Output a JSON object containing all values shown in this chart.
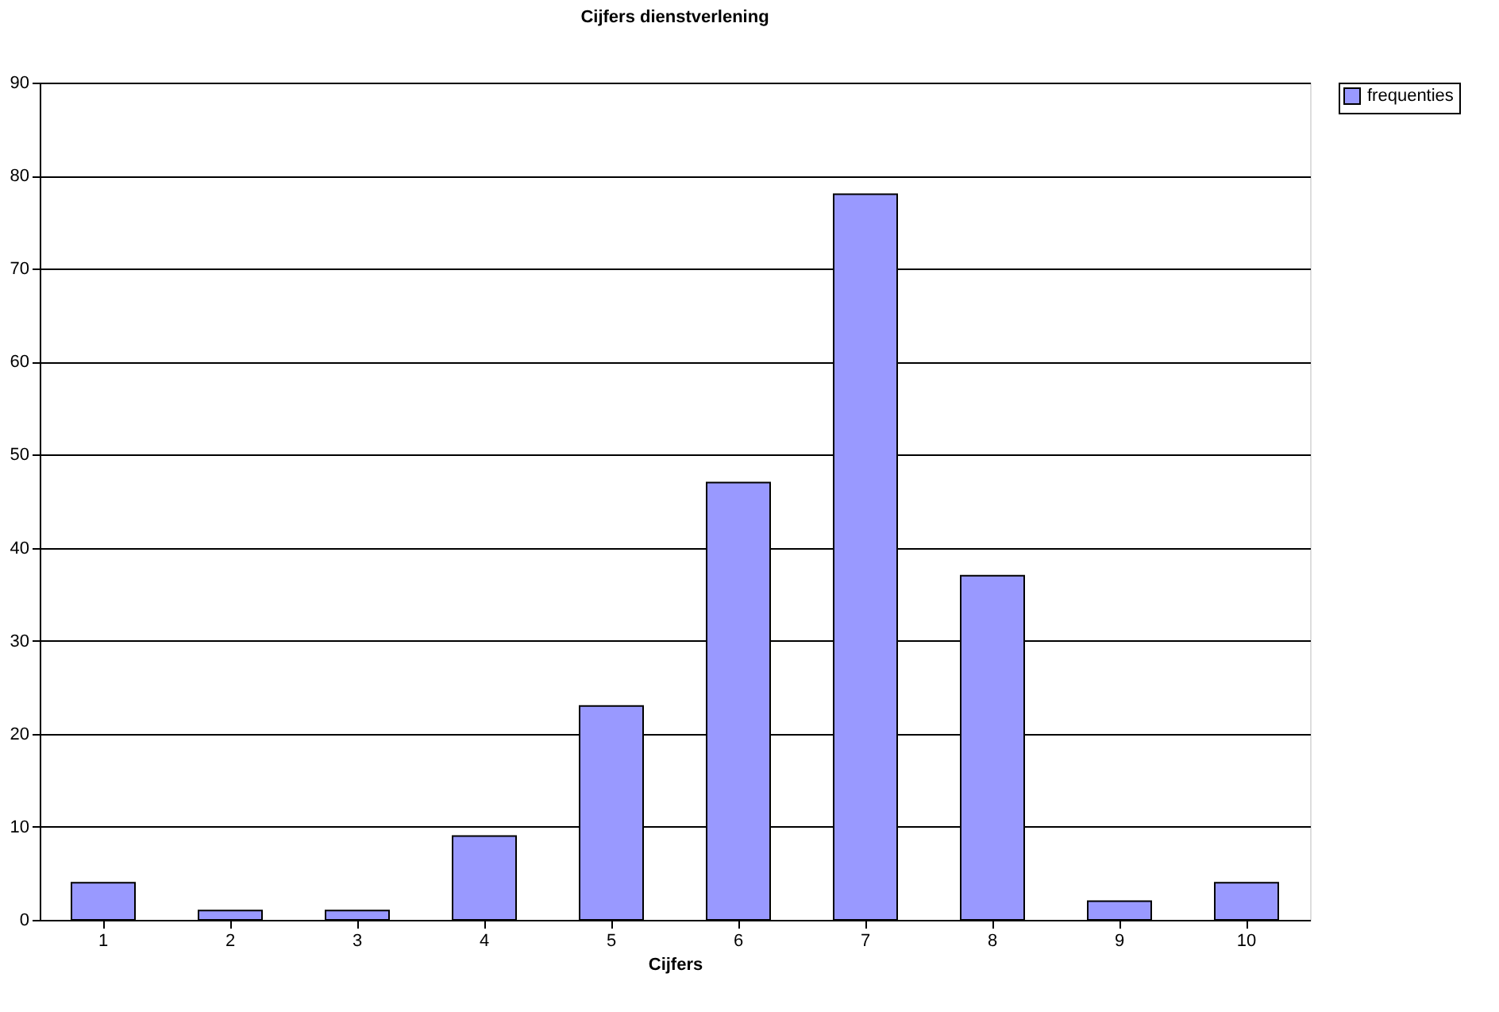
{
  "chart_data": {
    "type": "bar",
    "title": "Cijfers dienstverlening",
    "xlabel": "Cijfers",
    "categories": [
      "1",
      "2",
      "3",
      "4",
      "5",
      "6",
      "7",
      "8",
      "9",
      "10"
    ],
    "series": [
      {
        "name": "frequenties",
        "color": "#9999ff",
        "values": [
          4,
          1,
          1,
          9,
          23,
          47,
          78,
          37,
          2,
          4
        ]
      }
    ],
    "ylim": [
      0,
      90
    ],
    "yticks": [
      0,
      10,
      20,
      30,
      40,
      50,
      60,
      70,
      80,
      90
    ],
    "grid": "y",
    "legend": "right"
  }
}
